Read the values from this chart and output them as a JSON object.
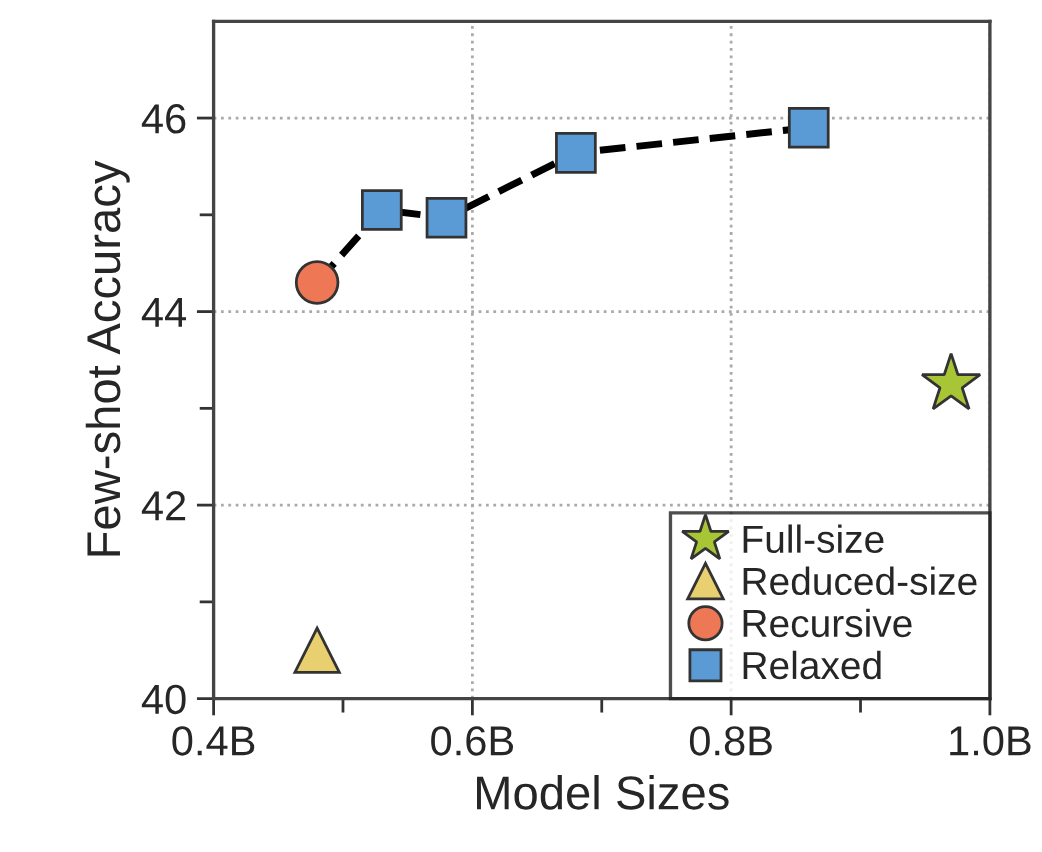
{
  "chart_data": {
    "type": "scatter",
    "xlabel": "Model Sizes",
    "ylabel": "Few-shot Accuracy",
    "xlim": [
      0.4,
      1.0
    ],
    "ylim": [
      40,
      47
    ],
    "xticks": [
      {
        "value": 0.4,
        "label": "0.4B"
      },
      {
        "value": 0.5,
        "label": null
      },
      {
        "value": 0.6,
        "label": "0.6B"
      },
      {
        "value": 0.7,
        "label": null
      },
      {
        "value": 0.8,
        "label": "0.8B"
      },
      {
        "value": 0.9,
        "label": null
      },
      {
        "value": 1.0,
        "label": "1.0B"
      }
    ],
    "yticks": [
      40,
      {
        "value": 41,
        "label": null
      },
      42,
      {
        "value": 43,
        "label": null
      },
      44,
      {
        "value": 45,
        "label": null
      },
      46
    ],
    "grid": true,
    "legend": "bottom right",
    "series": [
      {
        "type": "line",
        "color": "#000000",
        "line_style": "dashed",
        "marker": "none",
        "x": [
          0.48,
          0.53,
          0.58,
          0.68,
          0.86
        ],
        "values": [
          44.3,
          45.05,
          44.97,
          45.64,
          45.9
        ]
      },
      {
        "name": "Full-size",
        "color": "#a8c536",
        "marker": "star",
        "x": [
          0.97
        ],
        "values": [
          43.25
        ]
      },
      {
        "name": "Reduced-size",
        "color": "#e8cf6f",
        "marker": "triangle",
        "x": [
          0.48
        ],
        "values": [
          40.5
        ]
      },
      {
        "name": "Recursive",
        "color": "#ee7755",
        "marker": "circle",
        "x": [
          0.48
        ],
        "values": [
          44.3
        ]
      },
      {
        "name": "Relaxed",
        "color": "#5b9bd5",
        "marker": "square",
        "x": [
          0.53,
          0.58,
          0.68,
          0.86
        ],
        "values": [
          45.05,
          44.97,
          45.64,
          45.9
        ]
      }
    ]
  }
}
